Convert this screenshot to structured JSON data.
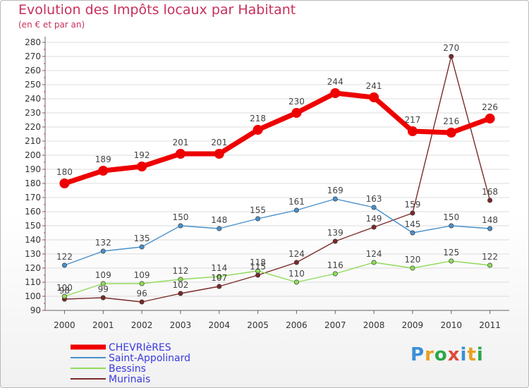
{
  "title": "Evolution des Impôts locaux par Habitant",
  "subtitle": "(en € et par an)",
  "logo_text": "Proxiti",
  "logo_colors": [
    "#3a8fd6",
    "#e8a020",
    "#2aa84a",
    "#e04b3a",
    "#3a8fd6",
    "#e8a020",
    "#2aa84a"
  ],
  "chart_data": {
    "type": "line",
    "x": [
      "2000",
      "2001",
      "2002",
      "2003",
      "2004",
      "2005",
      "2006",
      "2007",
      "2008",
      "2009",
      "2010",
      "2011"
    ],
    "ylim": [
      90,
      280
    ],
    "yticks": [
      90,
      100,
      110,
      120,
      130,
      140,
      150,
      160,
      170,
      180,
      190,
      200,
      210,
      220,
      230,
      240,
      250,
      260,
      270,
      280
    ],
    "grid": "horizontal",
    "legend": "bottom-left",
    "series": [
      {
        "name": "Murinais",
        "color": "#7a2a2a",
        "values": [
          98,
          99,
          96,
          102,
          107,
          115,
          124,
          139,
          149,
          159,
          270,
          168
        ]
      },
      {
        "name": "Bessins",
        "color": "#8fdb5a",
        "values": [
          100,
          109,
          109,
          112,
          114,
          118,
          110,
          116,
          124,
          120,
          125,
          122
        ]
      },
      {
        "name": "Saint-Appolinard",
        "color": "#4a90cc",
        "values": [
          122,
          132,
          135,
          150,
          148,
          155,
          161,
          169,
          163,
          145,
          150,
          148
        ]
      },
      {
        "name": "CHEVRIèRES",
        "color": "#ee0000",
        "values": [
          180,
          189,
          192,
          201,
          201,
          218,
          230,
          244,
          241,
          217,
          216,
          226
        ]
      }
    ]
  }
}
